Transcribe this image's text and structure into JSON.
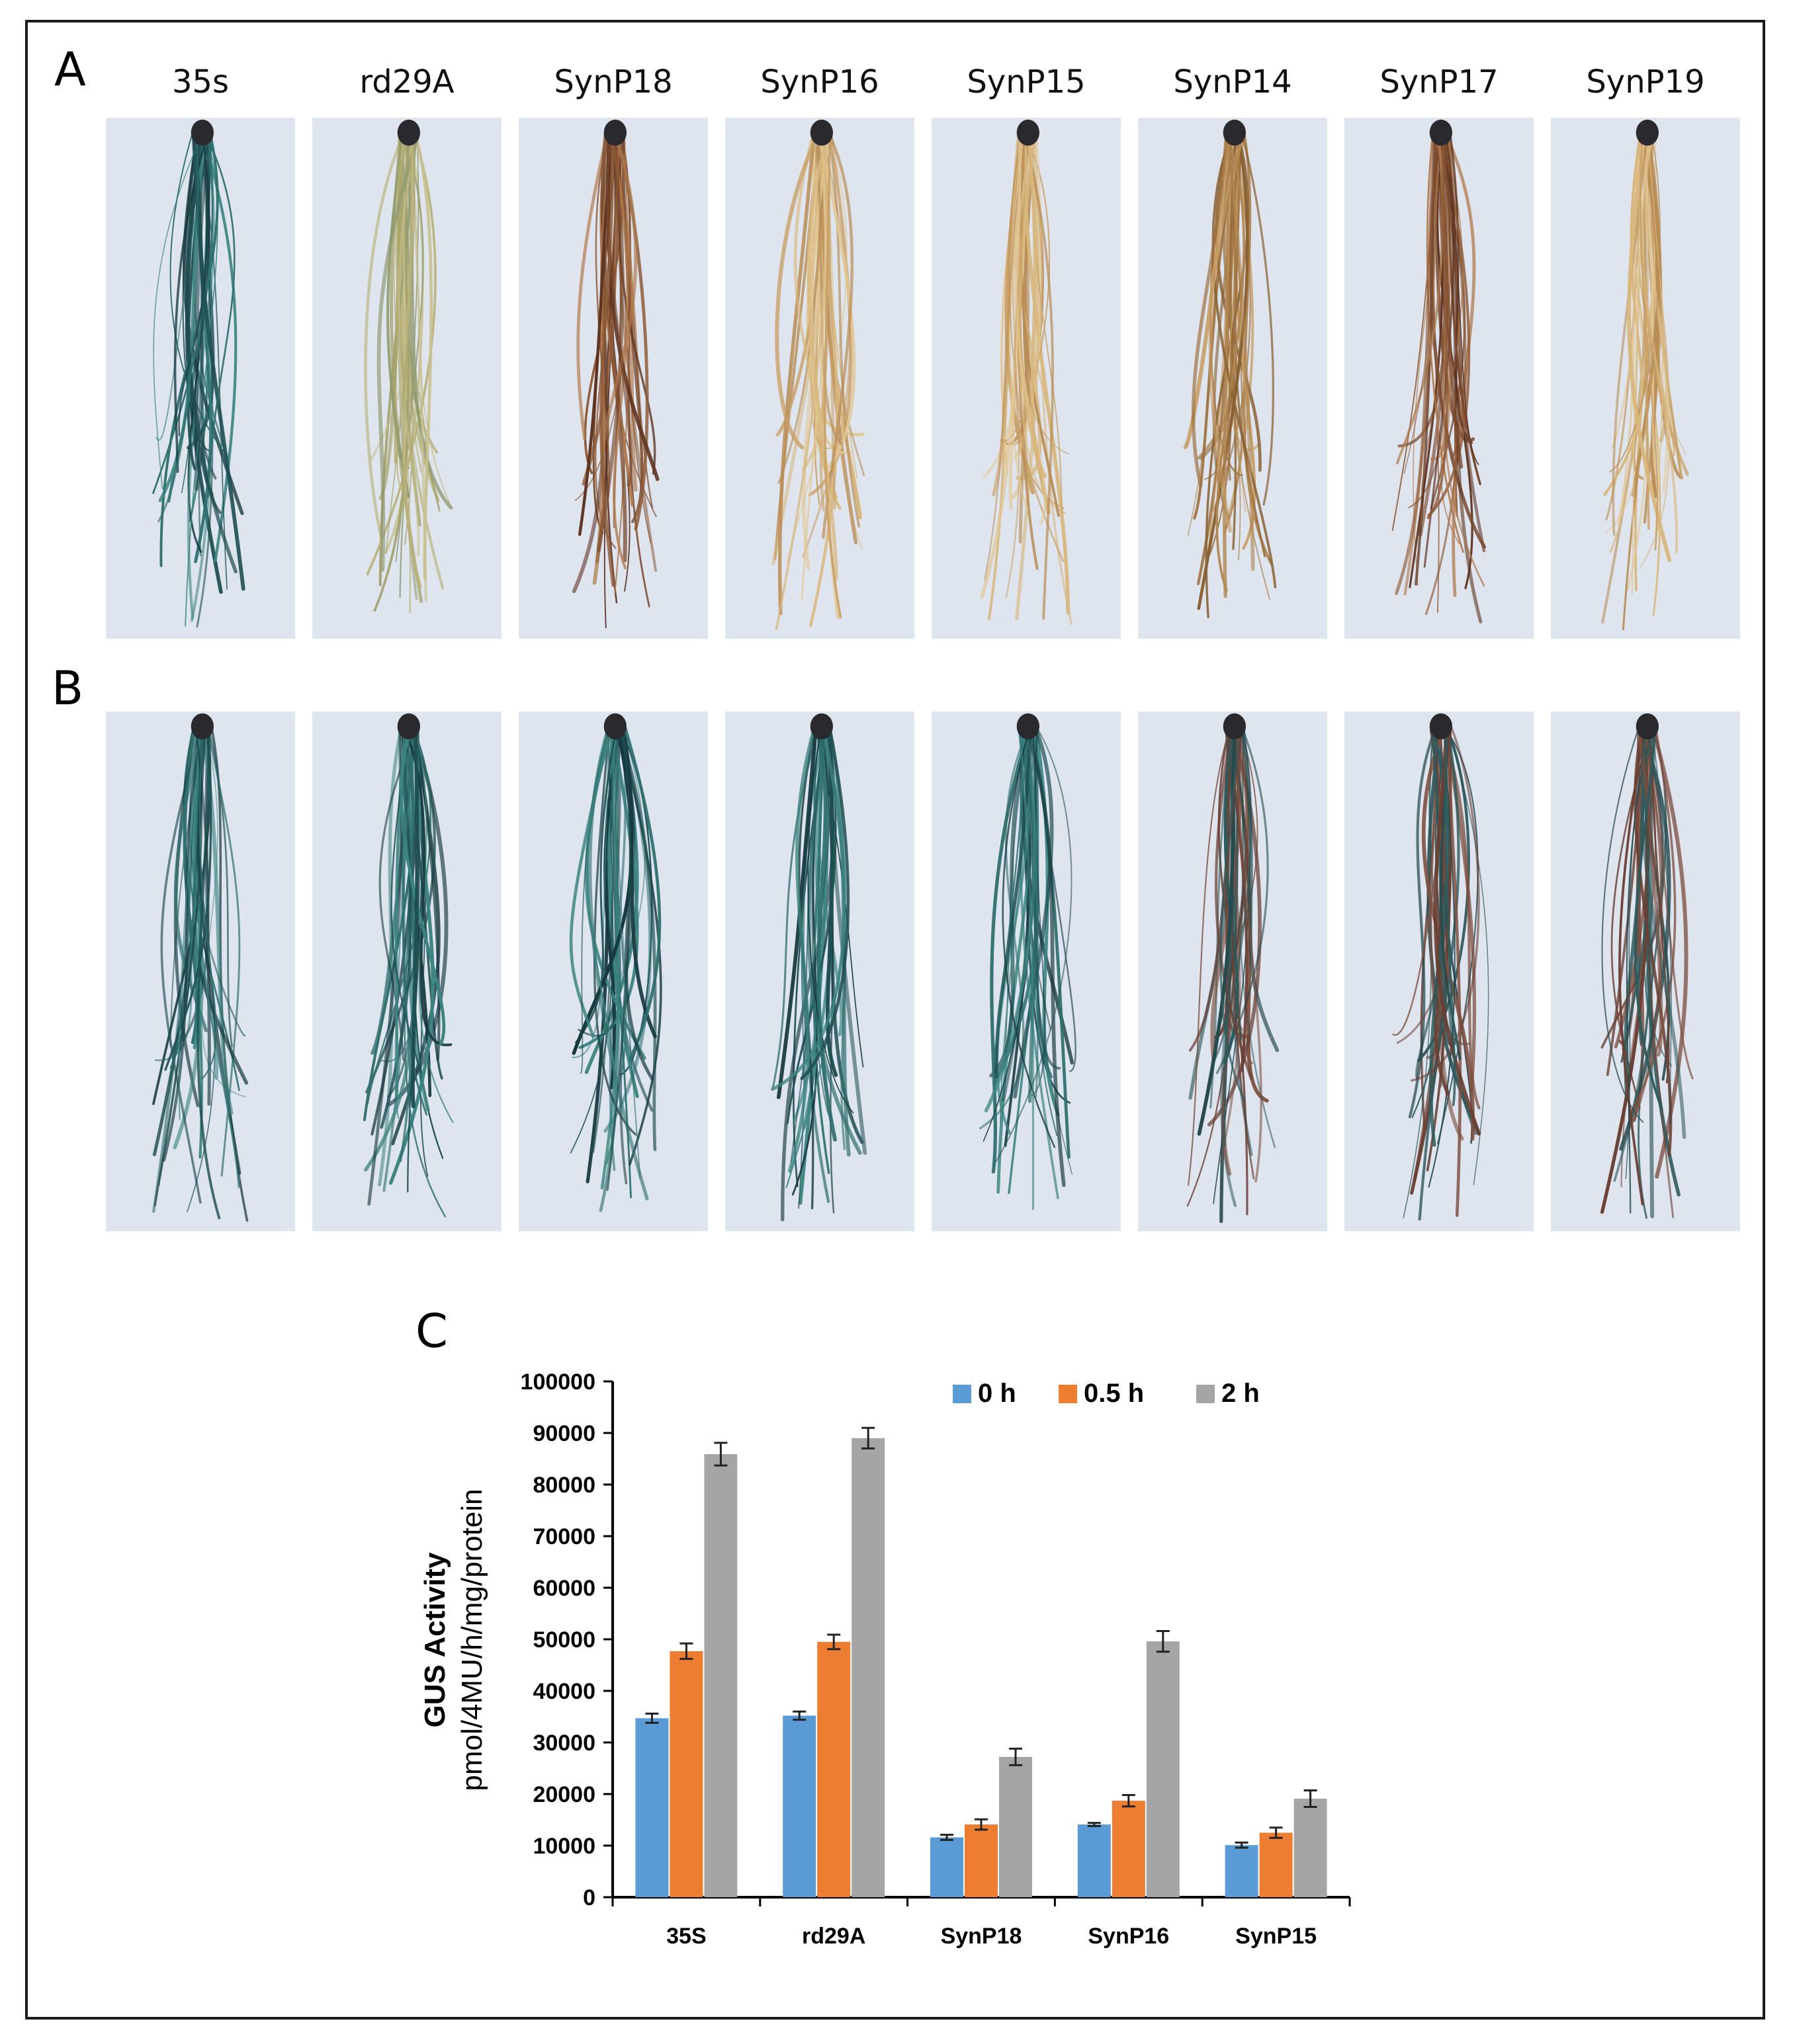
{
  "panels": {
    "a": "A",
    "b": "B",
    "c": "C"
  },
  "samples": [
    "35s",
    "rd29A",
    "SynP18",
    "SynP16",
    "SynP15",
    "SynP14",
    "SynP17",
    "SynP19"
  ],
  "row_a_stain": [
    "blue-green",
    "pale yellow-green",
    "brown",
    "pale yellow",
    "pale yellow",
    "tan",
    "brown",
    "pale yellow"
  ],
  "row_b_stain": [
    "blue-green",
    "blue-green",
    "blue-green",
    "blue-green",
    "blue-green",
    "brown with blue",
    "brown with blue",
    "brown with blue"
  ],
  "colors": {
    "series_0h": "#5b9bd5",
    "series_05h": "#ed7d31",
    "series_2h": "#a5a5a5",
    "photo_bg": "#dfe5ef"
  },
  "chart_data": {
    "type": "bar",
    "categories": [
      "35S",
      "rd29A",
      "SynP18",
      "SynP16",
      "SynP15"
    ],
    "series": [
      {
        "name": "0 h",
        "values": [
          34700,
          35200,
          11600,
          14100,
          10100
        ],
        "errors": [
          900,
          800,
          500,
          300,
          500
        ]
      },
      {
        "name": "0.5 h",
        "values": [
          47700,
          49500,
          14100,
          18700,
          12500
        ],
        "errors": [
          1500,
          1400,
          1000,
          1100,
          1000
        ]
      },
      {
        "name": "2 h",
        "values": [
          85900,
          89000,
          27200,
          49600,
          19100
        ],
        "errors": [
          2200,
          2000,
          1600,
          2000,
          1600
        ]
      }
    ],
    "ylabel_line1": "GUS Activity",
    "ylabel_line2": "pmol/4MU/h/mg/protein",
    "ylim": [
      0,
      100000
    ],
    "yticks": [
      0,
      10000,
      20000,
      30000,
      40000,
      50000,
      60000,
      70000,
      80000,
      90000,
      100000
    ],
    "ytick_labels": [
      "0",
      "10000",
      "20000",
      "30000",
      "40000",
      "50000",
      "60000",
      "70000",
      "80000",
      "90000",
      "100000"
    ],
    "legend_position": "top",
    "grid": false
  }
}
